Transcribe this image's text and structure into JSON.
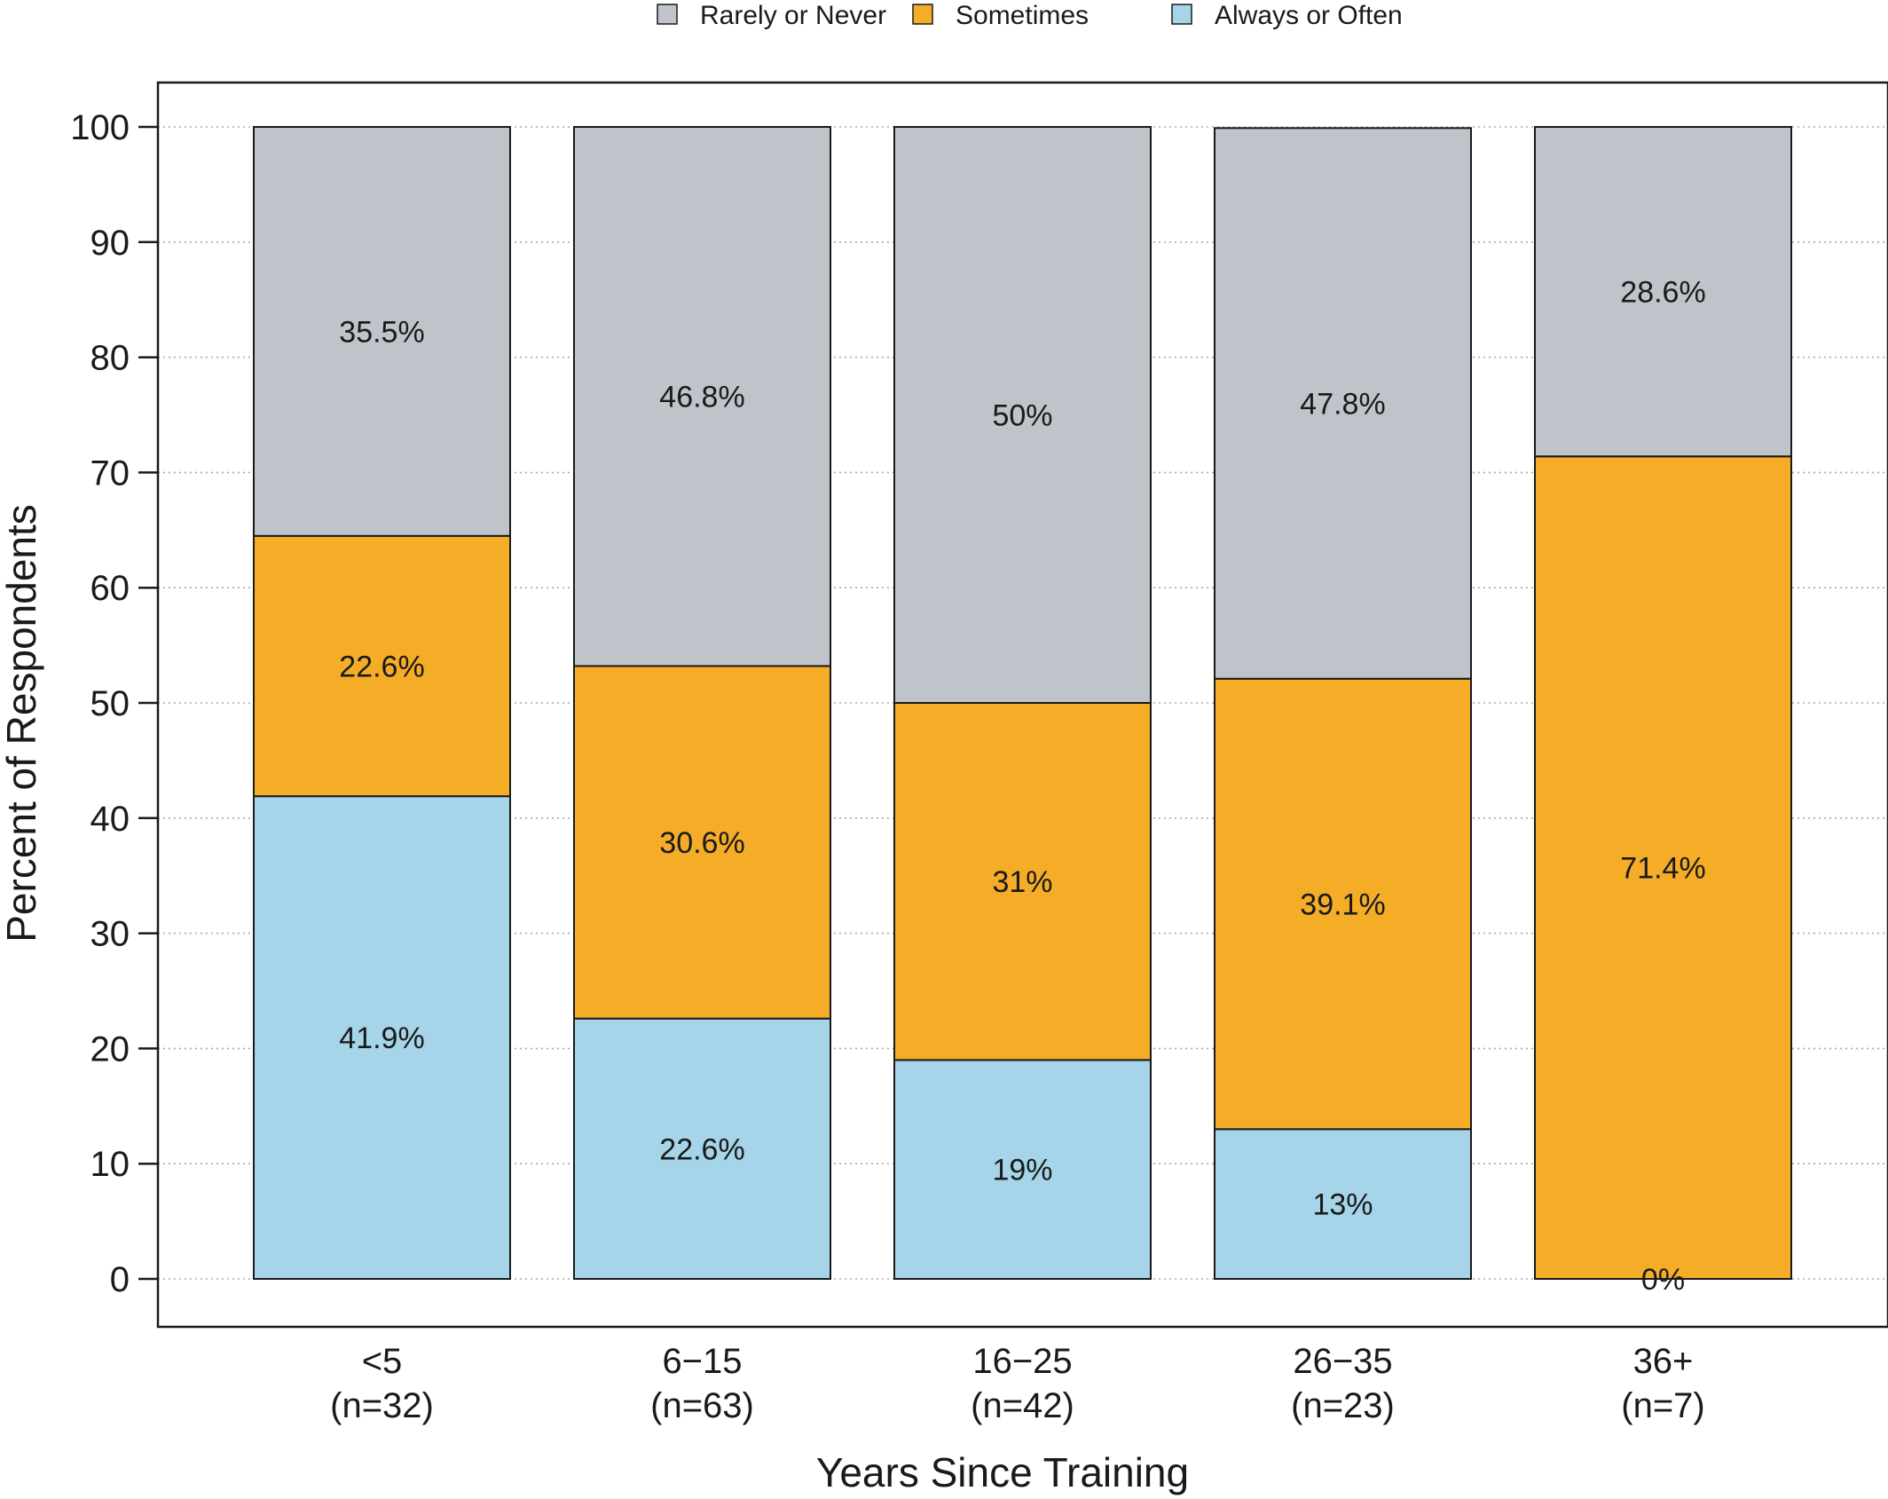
{
  "chart_data": {
    "type": "bar",
    "stacked": true,
    "categories": [
      "<5",
      "6−15",
      "16−25",
      "26−35",
      "36+"
    ],
    "category_counts": [
      "(n=32)",
      "(n=63)",
      "(n=42)",
      "(n=23)",
      "(n=7)"
    ],
    "series": [
      {
        "name": "Always or Often",
        "color": "#a6d5ea",
        "values": [
          41.9,
          22.6,
          19,
          13,
          0
        ],
        "labels": [
          "41.9%",
          "22.6%",
          "19%",
          "13%",
          "0%"
        ]
      },
      {
        "name": "Sometimes",
        "color": "#f5ac27",
        "values": [
          22.6,
          30.6,
          31,
          39.1,
          71.4
        ],
        "labels": [
          "22.6%",
          "30.6%",
          "31%",
          "39.1%",
          "71.4%"
        ]
      },
      {
        "name": "Rarely or Never",
        "color": "#bfc3ca",
        "values": [
          35.5,
          46.8,
          50,
          47.8,
          28.6
        ],
        "labels": [
          "35.5%",
          "46.8%",
          "50%",
          "47.8%",
          "28.6%"
        ]
      }
    ],
    "legend_order": [
      "Rarely or Never",
      "Sometimes",
      "Always or Often"
    ],
    "legend_position": "top",
    "title": "",
    "xlabel": "Years Since Training",
    "ylabel": "Percent of Respondents",
    "ylim": [
      0,
      100
    ],
    "yticks": [
      0,
      10,
      20,
      30,
      40,
      50,
      60,
      70,
      80,
      90,
      100
    ],
    "grid": true
  }
}
